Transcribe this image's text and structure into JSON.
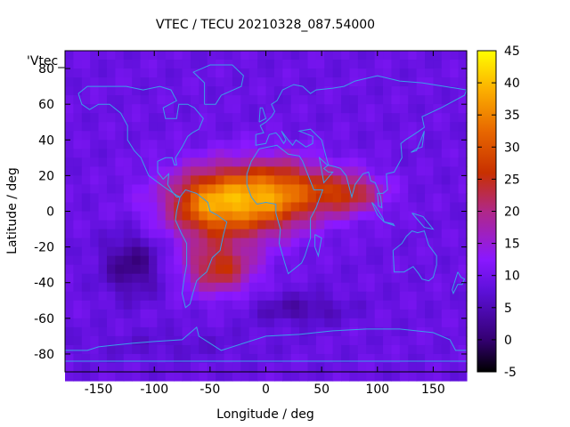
{
  "chart_data": {
    "type": "heatmap",
    "title": "VTEC / TECU 20210328_087.54000",
    "xlabel": "Longitude / deg",
    "ylabel": "Latitude / deg",
    "key_label": "'Vtec_",
    "xlim": [
      -180,
      180
    ],
    "ylim": [
      -90,
      90
    ],
    "clim": [
      -5,
      45
    ],
    "x_ticks": [
      -150,
      -100,
      -50,
      0,
      50,
      100,
      150
    ],
    "y_ticks": [
      -80,
      -60,
      -40,
      -20,
      0,
      20,
      40,
      60,
      80
    ],
    "cb_ticks": [
      -5,
      0,
      5,
      10,
      15,
      20,
      25,
      30,
      35,
      40,
      45
    ],
    "colormap": "gnuplot pm3d default (black-blue-purple-red-orange-yellow)",
    "background_value": 9,
    "features": [
      {
        "name": "equatorial-crest",
        "lon": -30,
        "lat": 5,
        "peak": 36
      },
      {
        "name": "south-america-high",
        "lon": -50,
        "lat": 5,
        "peak": 33
      },
      {
        "name": "africa-high",
        "lon": 10,
        "lat": 10,
        "peak": 30
      },
      {
        "name": "southern-crest",
        "lon": -40,
        "lat": -30,
        "peak": 28
      },
      {
        "name": "indian-ocean-tongue",
        "lon": 75,
        "lat": 10,
        "peak": 26
      },
      {
        "name": "pacific-low",
        "lon": -120,
        "lat": -30,
        "peak": 1
      },
      {
        "name": "southern-low",
        "lon": 30,
        "lat": -55,
        "peak": 4
      }
    ],
    "grid": false
  },
  "colors": {
    "coastline": "#3aa0e8",
    "frame": "#000000"
  }
}
